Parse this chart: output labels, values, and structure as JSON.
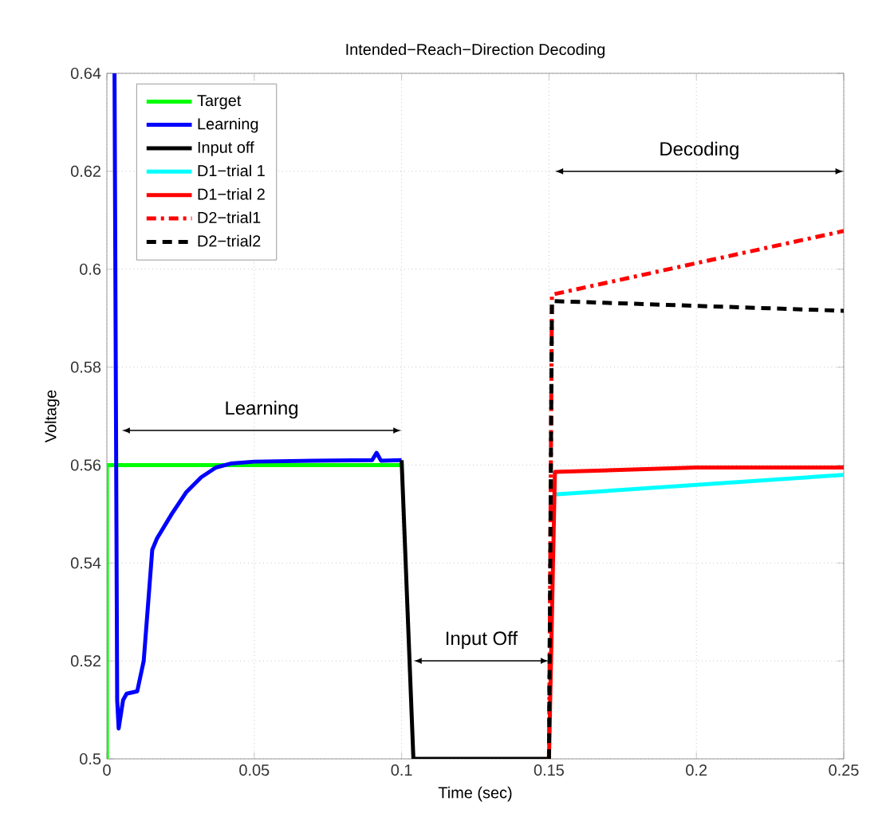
{
  "chart_data": {
    "type": "line",
    "title": "Intended−Reach−Direction Decoding",
    "xlabel": "Time (sec)",
    "ylabel": "Voltage",
    "xlim": [
      0,
      0.25
    ],
    "ylim": [
      0.5,
      0.64
    ],
    "xticks": [
      0,
      0.05,
      0.1,
      0.15,
      0.2,
      0.25
    ],
    "yticks": [
      0.5,
      0.52,
      0.54,
      0.56,
      0.58,
      0.6,
      0.62,
      0.64
    ],
    "grid": true,
    "legend": "top left",
    "series": [
      {
        "name": "Target",
        "color": "#00ff00",
        "line_style": "solid",
        "x": [
          0,
          0,
          0.1
        ],
        "values": [
          0.5,
          0.56,
          0.56
        ]
      },
      {
        "name": "Learning",
        "color": "#0000ff",
        "line_style": "solid",
        "x": [
          0.0026,
          0.0035,
          0.004,
          0.0055,
          0.0067,
          0.0103,
          0.0125,
          0.0154,
          0.017,
          0.022,
          0.027,
          0.032,
          0.037,
          0.042,
          0.05,
          0.07,
          0.09,
          0.0915,
          0.093,
          0.1
        ],
        "values": [
          0.64,
          0.512,
          0.5062,
          0.512,
          0.5133,
          0.5138,
          0.52,
          0.5427,
          0.545,
          0.55,
          0.5545,
          0.5575,
          0.5595,
          0.5603,
          0.5607,
          0.5609,
          0.561,
          0.5625,
          0.5609,
          0.561
        ]
      },
      {
        "name": "Input off",
        "color": "#000000",
        "line_style": "solid",
        "x": [
          0.1,
          0.104,
          0.15
        ],
        "values": [
          0.561,
          0.5,
          0.5
        ]
      },
      {
        "name": "D1−trial 1",
        "color": "#00ffff",
        "line_style": "solid",
        "x": [
          0.152,
          0.25
        ],
        "values": [
          0.554,
          0.558
        ]
      },
      {
        "name": "D1−trial 2",
        "color": "#ff0000",
        "line_style": "solid",
        "x": [
          0.15,
          0.152,
          0.2,
          0.25
        ],
        "values": [
          0.5,
          0.5586,
          0.5595,
          0.5595
        ]
      },
      {
        "name": "D2−trial1",
        "color": "#ff0000",
        "line_style": "dashdot",
        "x": [
          0.15,
          0.151,
          0.25
        ],
        "values": [
          0.5,
          0.5948,
          0.6078
        ]
      },
      {
        "name": "D2−trial2",
        "color": "#000000",
        "line_style": "dashed",
        "x": [
          0.15,
          0.151,
          0.25
        ],
        "values": [
          0.5,
          0.5935,
          0.5915
        ]
      }
    ],
    "annotations": [
      "Learning",
      "Input Off",
      "Decoding"
    ]
  }
}
